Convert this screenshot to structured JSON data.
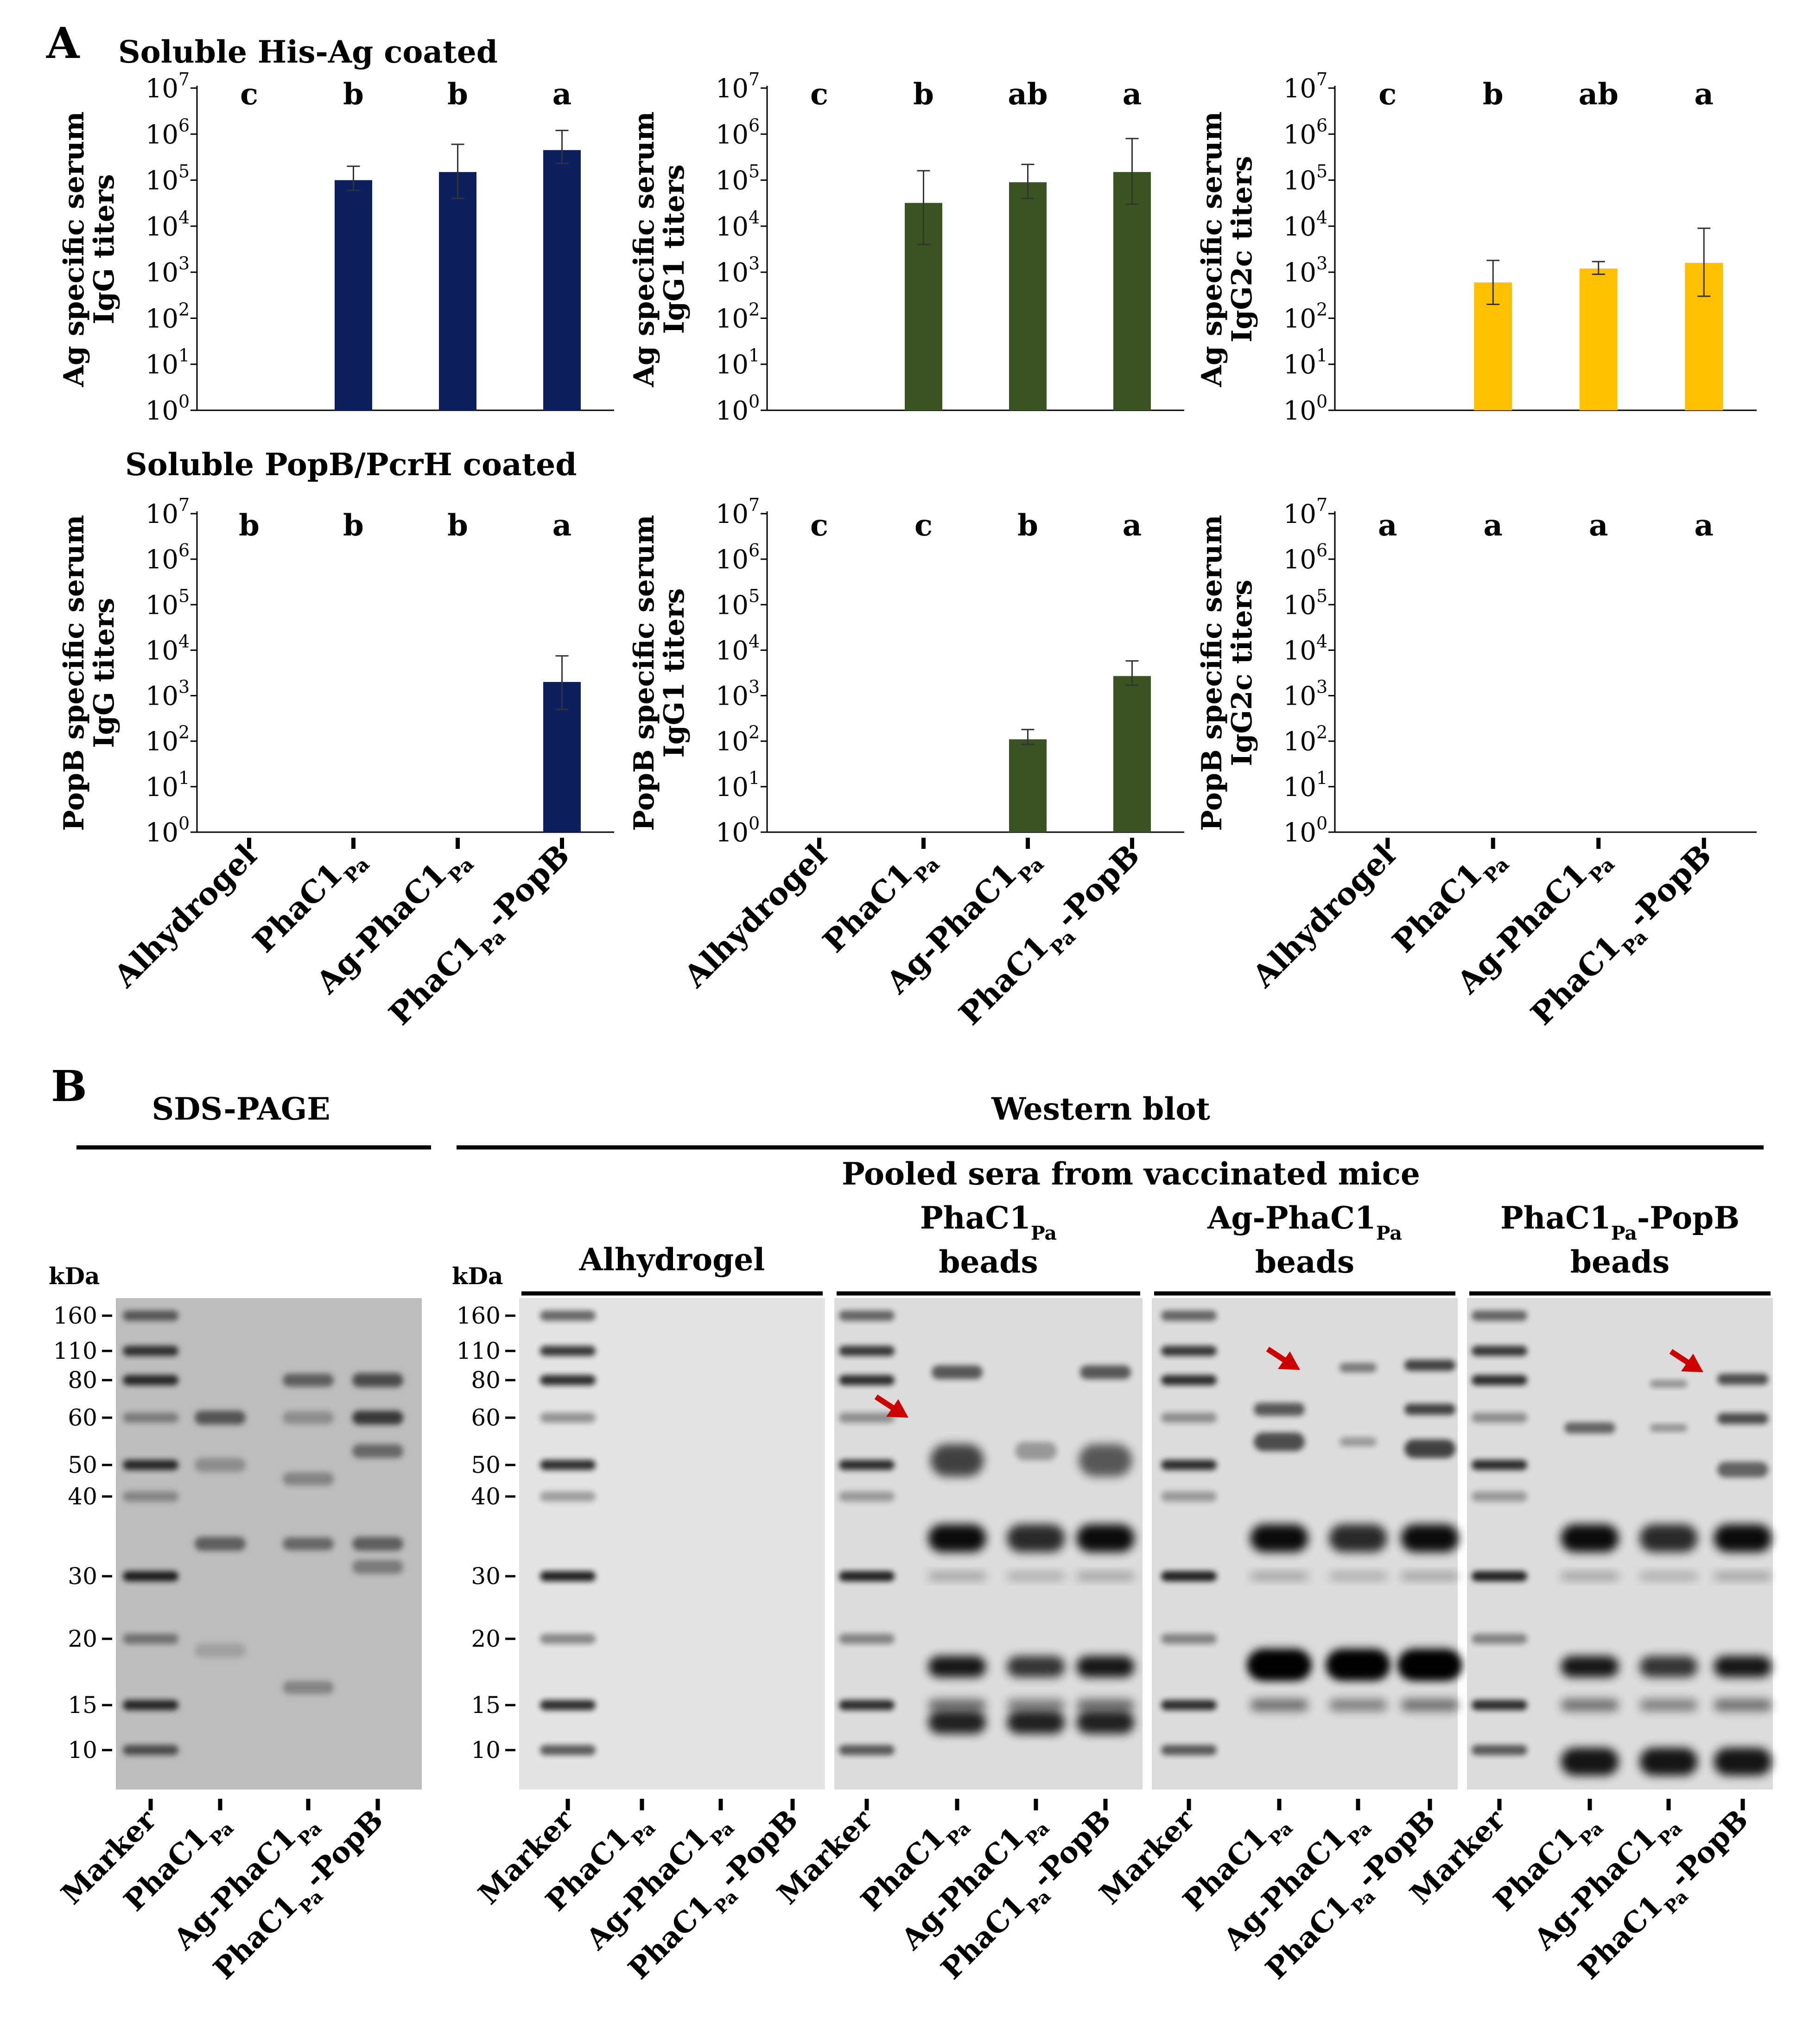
{
  "panel_a": {
    "label": "A",
    "rows": [
      {
        "title": "Soluble His-Ag coated",
        "charts": [
          {
            "ylabel": [
              "Ag specific serum",
              "IgG titers"
            ],
            "sub": "IgG",
            "color": "#0d1f5c",
            "letters": [
              "c",
              "b",
              "b",
              "a"
            ]
          },
          {
            "ylabel": [
              "Ag specific serum",
              "IgG1 titers"
            ],
            "sub": "IgG1",
            "color": "#3b5323",
            "letters": [
              "c",
              "b",
              "ab",
              "a"
            ]
          },
          {
            "ylabel": [
              "Ag specific serum",
              "IgG2c titers"
            ],
            "sub": "IgG2c",
            "color": "#ffc000",
            "letters": [
              "c",
              "b",
              "ab",
              "a"
            ]
          }
        ]
      },
      {
        "title": "Soluble PopB/PcrH coated",
        "charts": [
          {
            "ylabel": [
              "PopB specific serum",
              "IgG titers"
            ],
            "sub": "IgG",
            "color": "#0d1f5c",
            "letters": [
              "b",
              "b",
              "b",
              "a"
            ]
          },
          {
            "ylabel": [
              "PopB specific serum",
              "IgG1 titers"
            ],
            "sub": "IgG1",
            "color": "#3b5323",
            "letters": [
              "c",
              "c",
              "b",
              "a"
            ]
          },
          {
            "ylabel": [
              "PopB specific serum",
              "IgG2c titers"
            ],
            "sub": "IgG2c",
            "color": "#ffc000",
            "letters": [
              "a",
              "a",
              "a",
              "a"
            ]
          }
        ]
      }
    ],
    "x_categories": [
      "Alhydrogel",
      "PhaC1Pa",
      "Ag-PhaC1Pa",
      "PhaC1Pa-PopB"
    ]
  },
  "chart_data": [
    {
      "type": "bar",
      "title": "Soluble His-Ag coated",
      "ylabel": "Ag specific serum IgG titers",
      "yscale": "log",
      "ylim": [
        1,
        10000000
      ],
      "categories": [
        "Alhydrogel",
        "PhaC1Pa",
        "Ag-PhaC1Pa",
        "PhaC1Pa-PopB"
      ],
      "values": [
        1,
        100000,
        150000,
        450000
      ],
      "err_low": [
        1,
        60000,
        40000,
        230000
      ],
      "err_high": [
        1,
        200000,
        600000,
        1200000
      ],
      "letters": [
        "c",
        "b",
        "b",
        "a"
      ]
    },
    {
      "type": "bar",
      "title": "Soluble His-Ag coated",
      "ylabel": "Ag specific serum IgG1 titers",
      "yscale": "log",
      "ylim": [
        1,
        10000000
      ],
      "categories": [
        "Alhydrogel",
        "PhaC1Pa",
        "Ag-PhaC1Pa",
        "PhaC1Pa-PopB"
      ],
      "values": [
        1,
        32000,
        90000,
        150000
      ],
      "err_low": [
        1,
        4000,
        40000,
        30000
      ],
      "err_high": [
        1,
        160000,
        220000,
        800000
      ],
      "letters": [
        "c",
        "b",
        "ab",
        "a"
      ]
    },
    {
      "type": "bar",
      "title": "Soluble His-Ag coated",
      "ylabel": "Ag specific serum IgG2c titers",
      "yscale": "log",
      "ylim": [
        1,
        10000000
      ],
      "categories": [
        "Alhydrogel",
        "PhaC1Pa",
        "Ag-PhaC1Pa",
        "PhaC1Pa-PopB"
      ],
      "values": [
        1,
        600,
        1200,
        1600
      ],
      "err_low": [
        1,
        200,
        900,
        300
      ],
      "err_high": [
        1,
        1800,
        1700,
        9000
      ],
      "letters": [
        "c",
        "b",
        "ab",
        "a"
      ]
    },
    {
      "type": "bar",
      "title": "Soluble PopB/PcrH coated",
      "ylabel": "PopB specific serum IgG titers",
      "yscale": "log",
      "ylim": [
        1,
        10000000
      ],
      "categories": [
        "Alhydrogel",
        "PhaC1Pa",
        "Ag-PhaC1Pa",
        "PhaC1Pa-PopB"
      ],
      "values": [
        1,
        1,
        1,
        2000
      ],
      "err_low": [
        1,
        1,
        1,
        500
      ],
      "err_high": [
        1,
        1,
        1,
        7500
      ],
      "letters": [
        "b",
        "b",
        "b",
        "a"
      ]
    },
    {
      "type": "bar",
      "title": "Soluble PopB/PcrH coated",
      "ylabel": "PopB specific serum IgG1 titers",
      "yscale": "log",
      "ylim": [
        1,
        10000000
      ],
      "categories": [
        "Alhydrogel",
        "PhaC1Pa",
        "Ag-PhaC1Pa",
        "PhaC1Pa-PopB"
      ],
      "values": [
        1,
        1,
        110,
        2700
      ],
      "err_low": [
        1,
        1,
        85,
        1700
      ],
      "err_high": [
        1,
        1,
        180,
        5800
      ],
      "letters": [
        "c",
        "c",
        "b",
        "a"
      ]
    },
    {
      "type": "bar",
      "title": "Soluble PopB/PcrH coated",
      "ylabel": "PopB specific serum IgG2c titers",
      "yscale": "log",
      "ylim": [
        1,
        10000000
      ],
      "categories": [
        "Alhydrogel",
        "PhaC1Pa",
        "Ag-PhaC1Pa",
        "PhaC1Pa-PopB"
      ],
      "values": [
        1,
        1,
        1,
        1
      ],
      "err_low": [
        1,
        1,
        1,
        1
      ],
      "err_high": [
        1,
        1,
        1,
        1
      ],
      "letters": [
        "a",
        "a",
        "a",
        "a"
      ]
    }
  ],
  "panel_b": {
    "label": "B",
    "sds_title": "SDS-PAGE",
    "wb_title": "Western blot",
    "pooled_title": "Pooled sera from vaccinated mice",
    "kda_label": "kDa",
    "markers": [
      "160",
      "110",
      "80",
      "60",
      "50",
      "40",
      "30",
      "20",
      "15",
      "10"
    ],
    "blot_headers": [
      "Alhydrogel",
      "PhaC1Pa beads",
      "Ag-PhaC1Pa beads",
      "PhaC1Pa-PopB beads"
    ],
    "lane_labels": [
      "Marker",
      "PhaC1Pa",
      "Ag-PhaC1Pa",
      "PhaC1Pa-PopB"
    ],
    "arrow_color": "#cc0000"
  }
}
